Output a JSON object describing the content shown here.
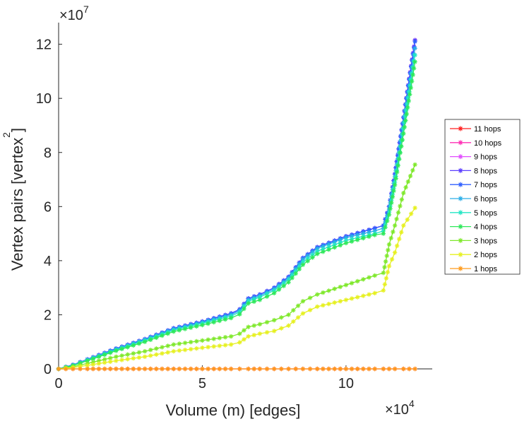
{
  "chart_data": {
    "type": "line",
    "title": "",
    "xlabel": "Volume (m) [edges]",
    "ylabel_main": "Vertex pairs [vertex",
    "ylabel_sup": "2",
    "ylabel_close": "]",
    "x_multiplier": {
      "base": "×10",
      "exp": "4"
    },
    "y_multiplier": {
      "base": "×10",
      "exp": "7"
    },
    "xlim": [
      0,
      13
    ],
    "ylim": [
      0,
      12.8
    ],
    "x_ticks": [
      0,
      5,
      10
    ],
    "x_tick_labels": [
      "0",
      "5",
      "10"
    ],
    "y_ticks": [
      0,
      2,
      4,
      6,
      8,
      10,
      12
    ],
    "y_tick_labels": [
      "0",
      "2",
      "4",
      "6",
      "8",
      "10",
      "12"
    ],
    "legend_position": "right",
    "x": [
      0,
      0.5,
      1,
      2,
      3,
      4,
      5,
      6,
      6.3,
      6.6,
      7,
      7.5,
      8,
      8.5,
      9,
      10,
      11,
      11.3,
      11.5,
      11.7,
      12,
      12.4
    ],
    "series": [
      {
        "name": "11 hops",
        "color": "#ff1f1f",
        "values": [
          0,
          0,
          0,
          0,
          0,
          0,
          0,
          0,
          0,
          0,
          0,
          0,
          0,
          0,
          0,
          0,
          0,
          0,
          0,
          0,
          0,
          0
        ]
      },
      {
        "name": "10 hops",
        "color": "#ff2fb5",
        "values": [
          0,
          0.15,
          0.35,
          0.75,
          1.1,
          1.5,
          1.75,
          2.05,
          2.2,
          2.6,
          2.75,
          3.0,
          3.4,
          4.1,
          4.5,
          4.9,
          5.2,
          5.3,
          6.0,
          7.2,
          9.3,
          12.15
        ]
      },
      {
        "name": "9 hops",
        "color": "#e14cff",
        "values": [
          0,
          0.15,
          0.35,
          0.75,
          1.1,
          1.5,
          1.75,
          2.05,
          2.2,
          2.6,
          2.75,
          3.0,
          3.4,
          4.1,
          4.5,
          4.9,
          5.2,
          5.3,
          6.0,
          7.2,
          9.3,
          12.15
        ]
      },
      {
        "name": "8 hops",
        "color": "#5a3dff",
        "values": [
          0,
          0.15,
          0.35,
          0.75,
          1.1,
          1.5,
          1.75,
          2.05,
          2.2,
          2.6,
          2.75,
          3.0,
          3.4,
          4.1,
          4.5,
          4.9,
          5.2,
          5.3,
          6.0,
          7.2,
          9.3,
          12.15
        ]
      },
      {
        "name": "7 hops",
        "color": "#2f5fff",
        "values": [
          0,
          0.15,
          0.35,
          0.75,
          1.1,
          1.5,
          1.75,
          2.05,
          2.2,
          2.6,
          2.75,
          3.0,
          3.4,
          4.1,
          4.5,
          4.9,
          5.2,
          5.3,
          6.0,
          7.2,
          9.3,
          12.1
        ]
      },
      {
        "name": "6 hops",
        "color": "#2aaee8",
        "values": [
          0,
          0.14,
          0.34,
          0.73,
          1.08,
          1.47,
          1.72,
          2.0,
          2.15,
          2.55,
          2.7,
          2.95,
          3.35,
          4.05,
          4.45,
          4.85,
          5.1,
          5.2,
          5.9,
          7.1,
          9.1,
          11.85
        ]
      },
      {
        "name": "5 hops",
        "color": "#22e6c4",
        "values": [
          0,
          0.13,
          0.32,
          0.7,
          1.05,
          1.43,
          1.68,
          1.95,
          2.1,
          2.5,
          2.65,
          2.9,
          3.3,
          3.95,
          4.35,
          4.75,
          5.0,
          5.1,
          5.8,
          6.9,
          8.9,
          11.6
        ]
      },
      {
        "name": "4 hops",
        "color": "#2ee85a",
        "values": [
          0,
          0.12,
          0.3,
          0.67,
          1.0,
          1.38,
          1.62,
          1.88,
          2.02,
          2.42,
          2.55,
          2.8,
          3.2,
          3.85,
          4.25,
          4.65,
          4.95,
          5.0,
          5.7,
          6.8,
          8.7,
          11.35
        ]
      },
      {
        "name": "3 hops",
        "color": "#7ee82a",
        "values": [
          0,
          0.08,
          0.2,
          0.45,
          0.65,
          0.9,
          1.05,
          1.2,
          1.3,
          1.55,
          1.65,
          1.8,
          2.0,
          2.5,
          2.75,
          3.1,
          3.45,
          3.55,
          4.6,
          5.3,
          6.5,
          7.55
        ]
      },
      {
        "name": "2 hops",
        "color": "#e6f01f",
        "values": [
          0,
          0.05,
          0.13,
          0.3,
          0.45,
          0.65,
          0.78,
          0.9,
          0.98,
          1.2,
          1.3,
          1.4,
          1.6,
          2.05,
          2.3,
          2.55,
          2.8,
          2.9,
          3.8,
          4.3,
          5.3,
          5.95
        ]
      },
      {
        "name": "1 hops",
        "color": "#ff9a1a",
        "values": [
          0,
          0,
          0,
          0,
          0,
          0,
          0,
          0,
          0,
          0,
          0,
          0,
          0,
          0,
          0,
          0,
          0,
          0,
          0,
          0,
          0,
          0
        ]
      }
    ]
  }
}
